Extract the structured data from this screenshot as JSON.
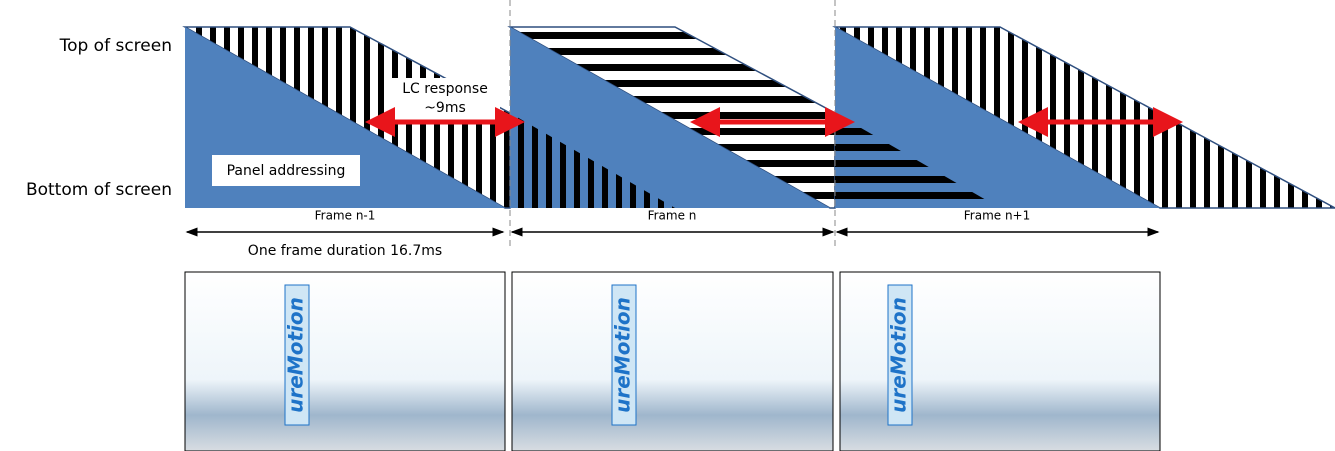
{
  "axis_labels": {
    "top": "Top of screen",
    "bottom": "Bottom of screen"
  },
  "annotations": {
    "lc_response": "LC response",
    "lc_time": "~9ms",
    "panel": "Panel addressing",
    "duration": "One frame duration 16.7ms"
  },
  "frames": [
    {
      "label": "Frame n-1",
      "photo_text": "ureMotion"
    },
    {
      "label": "Frame n",
      "photo_text": "ureMotion"
    },
    {
      "label": "Frame n+1",
      "photo_text": "ureMotion"
    }
  ]
}
